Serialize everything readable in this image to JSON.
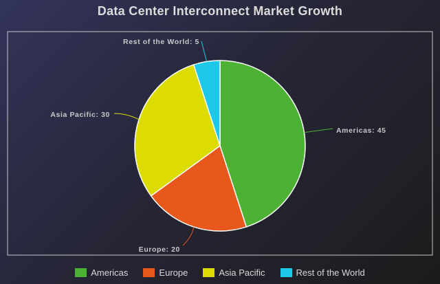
{
  "chart_data": {
    "type": "pie",
    "title": "Data Center Interconnect Market Growth",
    "labels": [
      "Americas",
      "Europe",
      "Asia Pacific",
      "Rest of the World"
    ],
    "values": [
      45,
      20,
      30,
      5
    ],
    "colors": [
      "#4db234",
      "#e8581c",
      "#dcdc00",
      "#1ec8e8"
    ],
    "slice_labels": [
      "Americas: 45",
      "Europe: 20",
      "Asia Pacific: 30",
      "Rest of the World: 5"
    ],
    "legend_position": "bottom",
    "start_angle": "12 o'clock",
    "direction": "clockwise"
  }
}
